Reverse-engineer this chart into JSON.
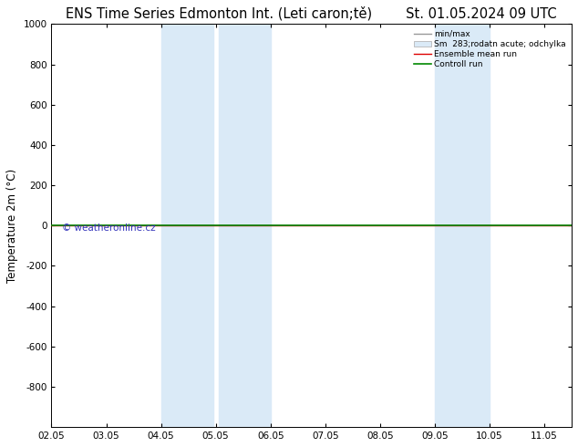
{
  "title_left": "ENS Time Series Edmonton Int. (Leti caron;tě)",
  "title_right": "St. 01.05.2024 09 UTC",
  "ylabel": "Temperature 2m (°C)",
  "ylim_top": -1000,
  "ylim_bottom": 1000,
  "yticks": [
    -800,
    -600,
    -400,
    -200,
    0,
    200,
    400,
    600,
    800,
    1000
  ],
  "xtick_labels": [
    "02.05",
    "03.05",
    "04.05",
    "05.05",
    "06.05",
    "07.05",
    "08.05",
    "09.05",
    "10.05",
    "11.05"
  ],
  "xlim": [
    0.0,
    9.5
  ],
  "shade_bands": [
    {
      "xmin": 2.0,
      "xmax": 2.95,
      "color": "#daeaf7"
    },
    {
      "xmin": 3.05,
      "xmax": 4.0,
      "color": "#daeaf7"
    },
    {
      "xmin": 7.0,
      "xmax": 8.0,
      "color": "#daeaf7"
    }
  ],
  "ensemble_mean_color": "#dd0000",
  "control_run_color": "#008800",
  "watermark": "© weatheronline.cz",
  "watermark_color": "#3333bb",
  "bg_color": "#ffffff",
  "title_fontsize": 10.5,
  "tick_fontsize": 7.5,
  "ylabel_fontsize": 8.5
}
